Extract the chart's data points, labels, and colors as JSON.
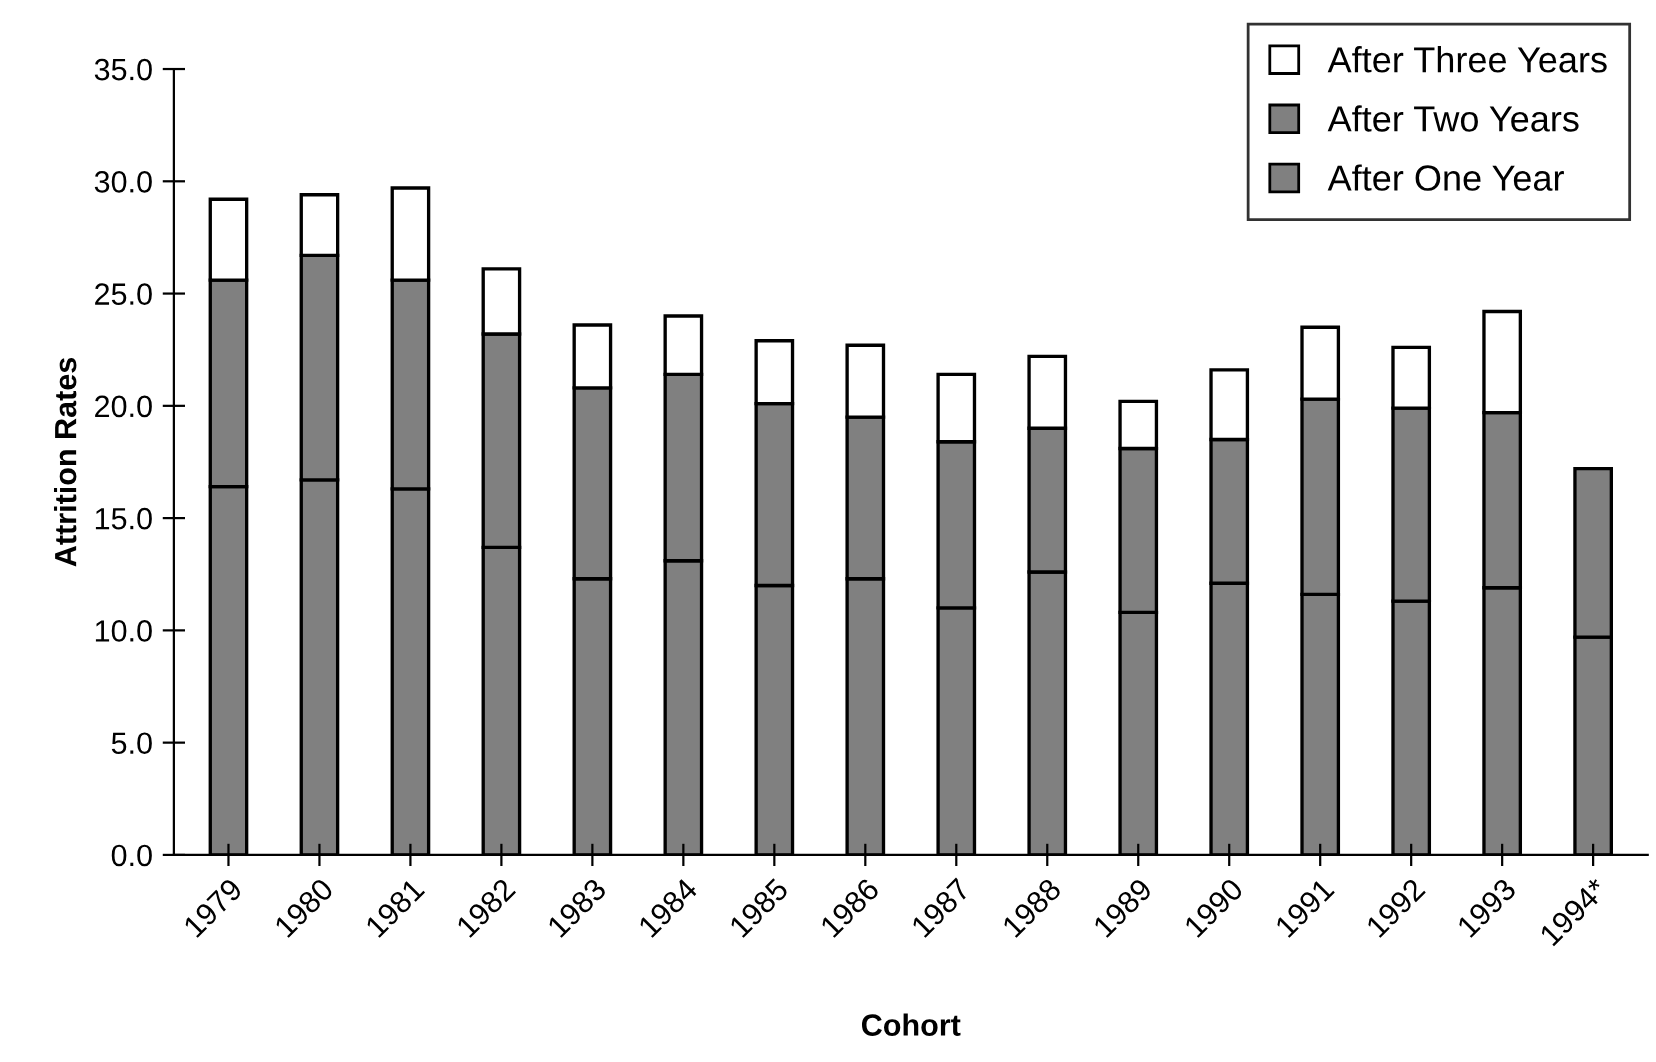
{
  "chart_data": {
    "type": "bar",
    "stacked": true,
    "xlabel": "Cohort",
    "ylabel": "Attrition Rates",
    "categories": [
      "1979",
      "1980",
      "1981",
      "1982",
      "1983",
      "1984",
      "1985",
      "1986",
      "1987",
      "1988",
      "1989",
      "1990",
      "1991",
      "1992",
      "1993",
      "1994*"
    ],
    "series": [
      {
        "name": "After One Year",
        "color": "#808080",
        "values": [
          16.4,
          16.7,
          16.3,
          13.7,
          12.3,
          13.1,
          12.0,
          12.3,
          11.0,
          12.6,
          10.8,
          12.1,
          11.6,
          11.3,
          11.9,
          9.7
        ]
      },
      {
        "name": "After Two Years",
        "color": "#808080",
        "values": [
          9.2,
          10.0,
          9.3,
          9.5,
          8.5,
          8.3,
          8.1,
          7.2,
          7.4,
          6.4,
          7.3,
          6.4,
          8.7,
          8.6,
          7.8,
          7.5
        ]
      },
      {
        "name": "After Three Years",
        "color": "#ffffff",
        "values": [
          3.6,
          2.7,
          4.1,
          2.9,
          2.8,
          2.6,
          2.8,
          3.2,
          3.0,
          3.2,
          2.1,
          3.1,
          3.2,
          2.7,
          4.5,
          null
        ]
      }
    ],
    "ylim": [
      0,
      35
    ],
    "yticks": [
      {
        "value": 0,
        "label": "0.0"
      },
      {
        "value": 5,
        "label": "5.0"
      },
      {
        "value": 10,
        "label": "10.0"
      },
      {
        "value": 15,
        "label": "15.0"
      },
      {
        "value": 20,
        "label": "20.0"
      },
      {
        "value": 25,
        "label": "25.0"
      },
      {
        "value": 30,
        "label": "30.0"
      },
      {
        "value": 35,
        "label": "35.0"
      }
    ],
    "grid": false,
    "legend": "top right"
  }
}
